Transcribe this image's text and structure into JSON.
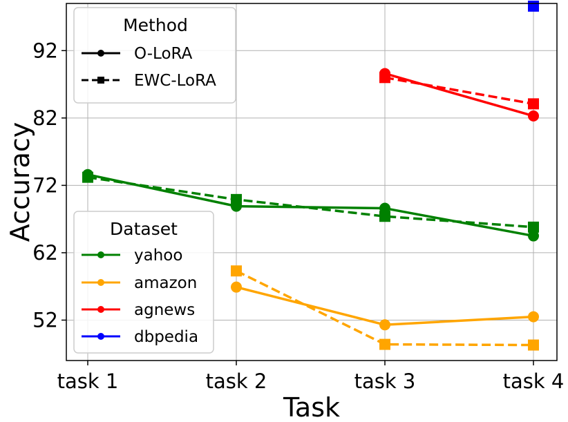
{
  "chart_data": {
    "type": "line",
    "title": "",
    "xlabel": "Task",
    "ylabel": "Accuracy",
    "categories": [
      "task 1",
      "task 2",
      "task 3",
      "task 4"
    ],
    "ylim": [
      46,
      99
    ],
    "yticks": [
      52,
      62,
      72,
      82,
      92
    ],
    "grid": true,
    "method_legend": {
      "title": "Method",
      "placement": "top-left",
      "entries": [
        {
          "label": "O-LoRA",
          "line": "solid",
          "marker": "circle"
        },
        {
          "label": "EWC-LoRA",
          "line": "dashed",
          "marker": "square"
        }
      ]
    },
    "dataset_legend": {
      "title": "Dataset",
      "placement": "center-left",
      "entries": [
        {
          "label": "yahoo",
          "color": "#008000"
        },
        {
          "label": "amazon",
          "color": "#FFA500"
        },
        {
          "label": "agnews",
          "color": "#FF0000"
        },
        {
          "label": "dbpedia",
          "color": "#0000FF"
        }
      ]
    },
    "series": [
      {
        "dataset": "yahoo",
        "method": "O-LoRA",
        "color": "#008000",
        "line": "solid",
        "marker": "circle",
        "values": [
          73.6,
          68.9,
          68.6,
          64.5
        ]
      },
      {
        "dataset": "yahoo",
        "method": "EWC-LoRA",
        "color": "#008000",
        "line": "dashed",
        "marker": "square",
        "values": [
          73.2,
          69.9,
          67.4,
          65.8
        ]
      },
      {
        "dataset": "amazon",
        "method": "O-LoRA",
        "color": "#FFA500",
        "line": "solid",
        "marker": "circle",
        "values": [
          null,
          56.9,
          51.3,
          52.5
        ]
      },
      {
        "dataset": "amazon",
        "method": "EWC-LoRA",
        "color": "#FFA500",
        "line": "dashed",
        "marker": "square",
        "values": [
          null,
          59.3,
          48.4,
          48.3
        ]
      },
      {
        "dataset": "agnews",
        "method": "O-LoRA",
        "color": "#FF0000",
        "line": "solid",
        "marker": "circle",
        "values": [
          null,
          null,
          88.6,
          82.3
        ]
      },
      {
        "dataset": "agnews",
        "method": "EWC-LoRA",
        "color": "#FF0000",
        "line": "dashed",
        "marker": "square",
        "values": [
          null,
          null,
          88.0,
          84.1
        ]
      },
      {
        "dataset": "dbpedia",
        "method": "EWC-LoRA",
        "color": "#0000FF",
        "line": "dashed",
        "marker": "square",
        "values": [
          null,
          null,
          null,
          98.6
        ]
      }
    ]
  }
}
